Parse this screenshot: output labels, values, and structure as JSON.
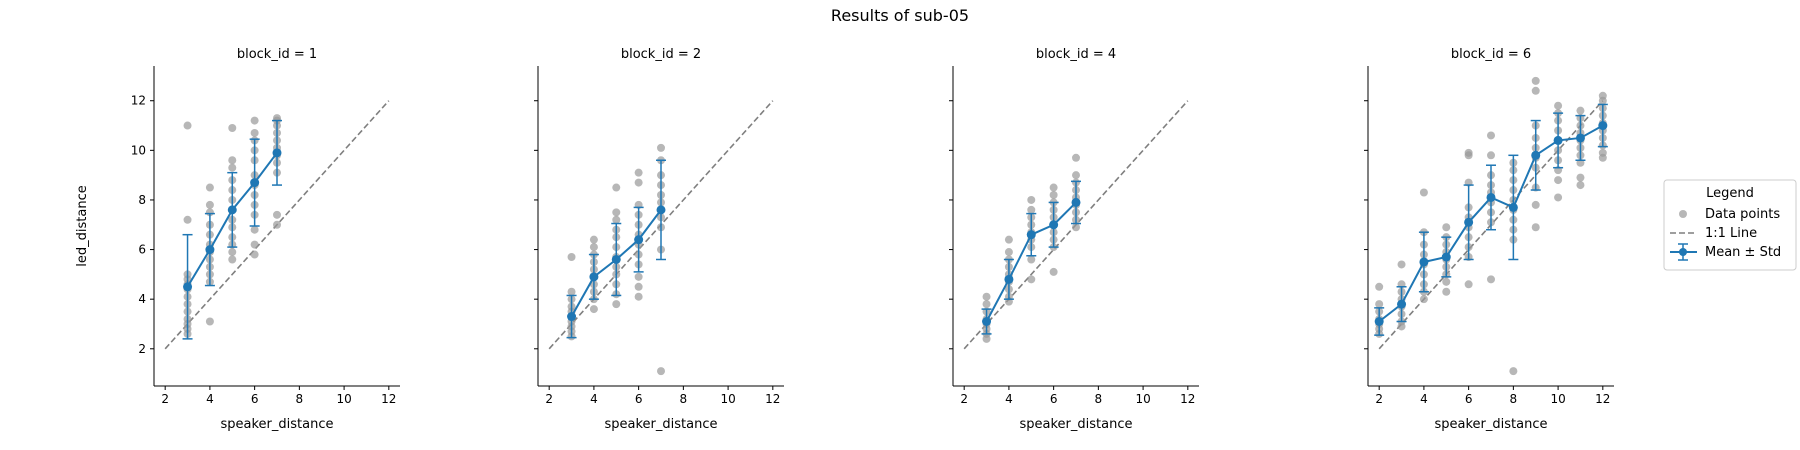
{
  "figure": {
    "title": "Results of sub-05"
  },
  "legend": {
    "title": "Legend",
    "items": [
      {
        "label": "Data points",
        "kind": "dot",
        "color": "#999999"
      },
      {
        "label": "1:1 Line",
        "kind": "dash",
        "color": "#7f7f7f"
      },
      {
        "label": "Mean ± Std",
        "kind": "errorbar",
        "color": "#1f77b4"
      }
    ]
  },
  "colors": {
    "mean": "#1f77b4",
    "points": "#999999",
    "identity": "#7f7f7f"
  },
  "chart_data": [
    {
      "type": "scatter",
      "title": "block_id = 1",
      "xlabel": "speaker_distance",
      "ylabel": "led_distance",
      "xlim": [
        1.5,
        12.5
      ],
      "ylim": [
        0.5,
        13.4
      ],
      "xticks": [
        2,
        4,
        6,
        8,
        10,
        12
      ],
      "yticks": [
        2,
        4,
        6,
        8,
        10,
        12
      ],
      "identity_line": [
        2,
        12
      ],
      "mean_std": [
        {
          "x": 3,
          "mean": 4.5,
          "std": 2.1
        },
        {
          "x": 4,
          "mean": 6.0,
          "std": 1.45
        },
        {
          "x": 5,
          "mean": 7.6,
          "std": 1.5
        },
        {
          "x": 6,
          "mean": 8.7,
          "std": 1.75
        },
        {
          "x": 7,
          "mean": 9.9,
          "std": 1.3
        }
      ],
      "points": [
        {
          "x": 3,
          "y": [
            11.0,
            7.2,
            5.0,
            4.8,
            4.6,
            4.4,
            4.1,
            3.8,
            3.5,
            3.2,
            3.0,
            2.8,
            2.6
          ]
        },
        {
          "x": 4,
          "y": [
            8.5,
            7.8,
            7.5,
            7.0,
            6.6,
            6.2,
            5.9,
            5.6,
            5.3,
            5.0,
            4.7,
            3.1
          ]
        },
        {
          "x": 5,
          "y": [
            10.9,
            9.6,
            9.3,
            8.8,
            8.4,
            8.0,
            7.6,
            7.2,
            6.9,
            6.5,
            6.2,
            5.9,
            5.6
          ]
        },
        {
          "x": 6,
          "y": [
            11.2,
            10.7,
            10.4,
            10.0,
            9.6,
            9.0,
            8.6,
            8.2,
            7.8,
            7.4,
            6.8,
            6.2,
            5.8
          ]
        },
        {
          "x": 7,
          "y": [
            11.3,
            11.2,
            11.0,
            10.7,
            10.4,
            10.1,
            9.8,
            9.5,
            9.1,
            7.4,
            7.0
          ]
        }
      ]
    },
    {
      "type": "scatter",
      "title": "block_id = 2",
      "xlabel": "speaker_distance",
      "ylabel": "",
      "xlim": [
        1.5,
        12.5
      ],
      "ylim": [
        0.5,
        13.4
      ],
      "xticks": [
        2,
        4,
        6,
        8,
        10,
        12
      ],
      "yticks": [
        2,
        4,
        6,
        8,
        10,
        12
      ],
      "identity_line": [
        2,
        12
      ],
      "mean_std": [
        {
          "x": 3,
          "mean": 3.3,
          "std": 0.85
        },
        {
          "x": 4,
          "mean": 4.9,
          "std": 0.9
        },
        {
          "x": 5,
          "mean": 5.6,
          "std": 1.45
        },
        {
          "x": 6,
          "mean": 6.4,
          "std": 1.3
        },
        {
          "x": 7,
          "mean": 7.6,
          "std": 2.0
        }
      ],
      "points": [
        {
          "x": 3,
          "y": [
            5.7,
            4.3,
            4.0,
            3.7,
            3.5,
            3.3,
            3.1,
            2.9,
            2.7,
            2.5
          ]
        },
        {
          "x": 4,
          "y": [
            6.4,
            6.1,
            5.8,
            5.5,
            5.2,
            4.9,
            4.6,
            4.3,
            4.0,
            3.6
          ]
        },
        {
          "x": 5,
          "y": [
            8.5,
            7.5,
            7.2,
            6.8,
            6.5,
            6.1,
            5.7,
            5.3,
            5.0,
            4.6,
            4.2,
            3.8
          ]
        },
        {
          "x": 6,
          "y": [
            9.1,
            8.7,
            7.8,
            7.4,
            7.0,
            6.6,
            6.2,
            5.8,
            5.4,
            4.9,
            4.5,
            4.1
          ]
        },
        {
          "x": 7,
          "y": [
            10.1,
            9.6,
            9.0,
            8.6,
            8.2,
            7.9,
            7.6,
            7.3,
            6.9,
            6.0,
            1.1
          ]
        }
      ]
    },
    {
      "type": "scatter",
      "title": "block_id = 4",
      "xlabel": "speaker_distance",
      "ylabel": "",
      "xlim": [
        1.5,
        12.5
      ],
      "ylim": [
        0.5,
        13.4
      ],
      "xticks": [
        2,
        4,
        6,
        8,
        10,
        12
      ],
      "yticks": [
        2,
        4,
        6,
        8,
        10,
        12
      ],
      "identity_line": [
        2,
        12
      ],
      "mean_std": [
        {
          "x": 3,
          "mean": 3.1,
          "std": 0.5
        },
        {
          "x": 4,
          "mean": 4.8,
          "std": 0.8
        },
        {
          "x": 5,
          "mean": 6.6,
          "std": 0.85
        },
        {
          "x": 6,
          "mean": 7.0,
          "std": 0.9
        },
        {
          "x": 7,
          "mean": 7.9,
          "std": 0.85
        }
      ],
      "points": [
        {
          "x": 3,
          "y": [
            4.1,
            3.8,
            3.5,
            3.2,
            3.0,
            2.8,
            2.6,
            2.4
          ]
        },
        {
          "x": 4,
          "y": [
            6.4,
            5.9,
            5.6,
            5.3,
            5.0,
            4.7,
            4.4,
            4.1,
            3.9
          ]
        },
        {
          "x": 5,
          "y": [
            8.0,
            7.6,
            7.3,
            7.0,
            6.7,
            6.4,
            6.1,
            5.6,
            4.8
          ]
        },
        {
          "x": 6,
          "y": [
            8.5,
            8.2,
            7.9,
            7.6,
            7.3,
            7.0,
            6.7,
            6.4,
            6.1,
            5.1
          ]
        },
        {
          "x": 7,
          "y": [
            9.7,
            9.0,
            8.7,
            8.4,
            8.1,
            7.8,
            7.5,
            7.2,
            6.9
          ]
        }
      ]
    },
    {
      "type": "scatter",
      "title": "block_id = 6",
      "xlabel": "speaker_distance",
      "ylabel": "",
      "xlim": [
        1.5,
        12.5
      ],
      "ylim": [
        0.5,
        13.4
      ],
      "xticks": [
        2,
        4,
        6,
        8,
        10,
        12
      ],
      "yticks": [
        2,
        4,
        6,
        8,
        10,
        12
      ],
      "identity_line": [
        2,
        12
      ],
      "mean_std": [
        {
          "x": 2,
          "mean": 3.1,
          "std": 0.55
        },
        {
          "x": 3,
          "mean": 3.8,
          "std": 0.7
        },
        {
          "x": 4,
          "mean": 5.5,
          "std": 1.2
        },
        {
          "x": 5,
          "mean": 5.7,
          "std": 0.8
        },
        {
          "x": 6,
          "mean": 7.1,
          "std": 1.5
        },
        {
          "x": 7,
          "mean": 8.1,
          "std": 1.3
        },
        {
          "x": 8,
          "mean": 7.7,
          "std": 2.1
        },
        {
          "x": 9,
          "mean": 9.8,
          "std": 1.4
        },
        {
          "x": 10,
          "mean": 10.4,
          "std": 1.1
        },
        {
          "x": 11,
          "mean": 10.5,
          "std": 0.9
        },
        {
          "x": 12,
          "mean": 11.0,
          "std": 0.85
        }
      ],
      "points": [
        {
          "x": 2,
          "y": [
            4.5,
            3.8,
            3.5,
            3.2,
            3.0,
            2.8,
            2.6
          ]
        },
        {
          "x": 3,
          "y": [
            5.4,
            4.6,
            4.3,
            4.0,
            3.7,
            3.4,
            3.1,
            2.9
          ]
        },
        {
          "x": 4,
          "y": [
            8.3,
            6.7,
            6.2,
            5.8,
            5.4,
            5.0,
            4.6,
            4.3,
            4.0
          ]
        },
        {
          "x": 5,
          "y": [
            6.9,
            6.5,
            6.2,
            5.9,
            5.6,
            5.3,
            5.0,
            4.7,
            4.3
          ]
        },
        {
          "x": 6,
          "y": [
            9.9,
            9.8,
            8.7,
            7.7,
            7.3,
            6.9,
            6.5,
            6.1,
            5.7,
            4.6
          ]
        },
        {
          "x": 7,
          "y": [
            10.6,
            9.8,
            9.0,
            8.6,
            8.3,
            7.9,
            7.5,
            7.1,
            4.8
          ]
        },
        {
          "x": 8,
          "y": [
            9.5,
            9.2,
            8.8,
            8.4,
            8.0,
            7.6,
            7.2,
            6.8,
            6.4,
            1.1
          ]
        },
        {
          "x": 9,
          "y": [
            12.8,
            12.4,
            11.0,
            10.5,
            10.1,
            9.7,
            9.3,
            8.5,
            7.8,
            6.9
          ]
        },
        {
          "x": 10,
          "y": [
            11.8,
            11.5,
            11.2,
            10.8,
            10.4,
            10.0,
            9.6,
            9.2,
            8.8,
            8.1
          ]
        },
        {
          "x": 11,
          "y": [
            11.6,
            11.3,
            11.0,
            10.7,
            10.4,
            10.1,
            9.8,
            9.5,
            8.9,
            8.6
          ]
        },
        {
          "x": 12,
          "y": [
            12.2,
            12.0,
            11.7,
            11.4,
            11.1,
            10.8,
            10.5,
            10.2,
            9.9,
            9.7
          ]
        }
      ]
    }
  ]
}
